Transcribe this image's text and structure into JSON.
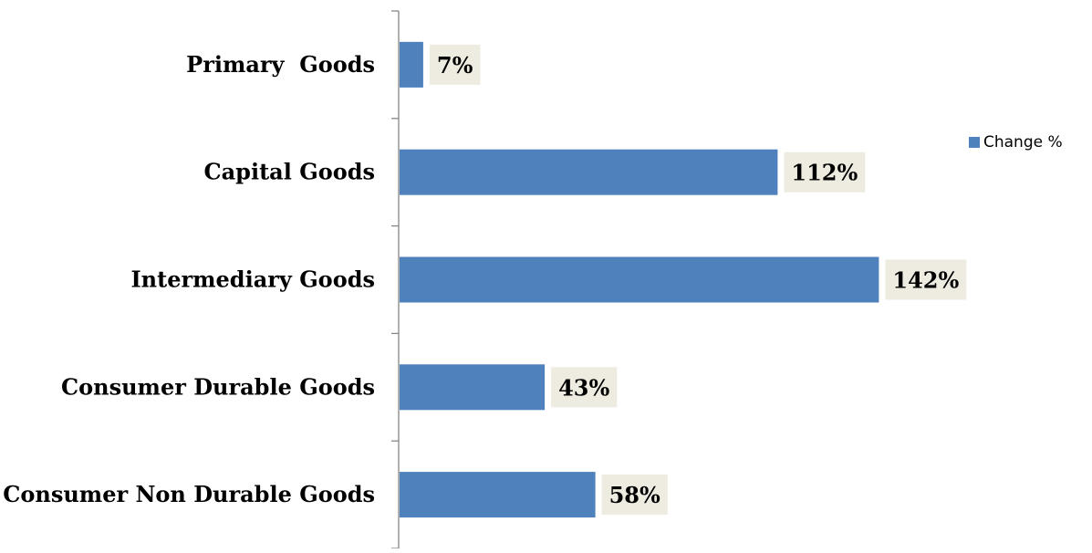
{
  "chart_data": {
    "type": "bar",
    "orientation": "horizontal",
    "title": "",
    "xlabel": "",
    "ylabel": "",
    "categories": [
      "Primary  Goods",
      "Capital Goods",
      "Intermediary Goods",
      "Consumer Durable Goods",
      "Consumer Non Durable Goods"
    ],
    "series": [
      {
        "name": "Change %",
        "values": [
          7,
          112,
          142,
          43,
          58
        ],
        "labels": [
          "7%",
          "112%",
          "142%",
          "43%",
          "58%"
        ],
        "color": "#4F81BD"
      }
    ],
    "xlim": [
      0,
      160
    ],
    "grid": false,
    "legend": "right",
    "label_background": "#EEECE1"
  }
}
